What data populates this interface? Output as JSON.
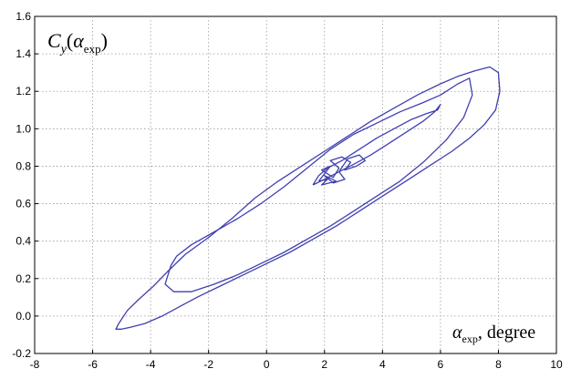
{
  "chart_data": {
    "type": "line",
    "title": "",
    "ylabel": {
      "symbol": "C",
      "subscript": "y",
      "open": "(",
      "arg": "α",
      "arg_sub": "exp",
      "close": ")"
    },
    "xlabel": {
      "symbol": "α",
      "subscript": "exp",
      "suffix": ", degree"
    },
    "xlim": [
      -8,
      10
    ],
    "ylim": [
      -0.2,
      1.6
    ],
    "x_ticks": [
      "-8",
      "-6",
      "-4",
      "-2",
      "0",
      "2",
      "4",
      "6",
      "8",
      "10"
    ],
    "y_ticks": [
      "-0.2",
      "0.0",
      "0.2",
      "0.4",
      "0.6",
      "0.8",
      "1.0",
      "1.2",
      "1.4",
      "1.6"
    ],
    "grid": true,
    "grid_style": "dotted",
    "legend": "none",
    "line_color": "#3f3fb0",
    "series": [
      {
        "x": [
          -5.1,
          -5.2,
          -5.0,
          -4.7,
          -4.2,
          -3.6,
          -3.0,
          -2.4,
          -1.6,
          -0.8,
          0.0,
          0.8,
          1.6,
          2.4,
          3.2,
          4.0,
          4.8,
          5.6,
          6.4,
          7.0,
          7.5,
          7.9,
          8.05,
          8.0,
          7.7,
          7.2,
          6.6,
          6.0,
          5.2,
          4.4,
          3.6,
          2.8,
          2.0,
          1.2,
          0.4,
          -0.4,
          -1.2,
          -2.0,
          -2.8,
          -3.4,
          -3.9,
          -4.4,
          -4.8,
          -5.1
        ],
        "y": [
          -0.04,
          -0.07,
          -0.07,
          -0.06,
          -0.04,
          0.0,
          0.05,
          0.1,
          0.16,
          0.22,
          0.28,
          0.34,
          0.41,
          0.48,
          0.56,
          0.64,
          0.72,
          0.8,
          0.88,
          0.95,
          1.02,
          1.1,
          1.2,
          1.3,
          1.33,
          1.31,
          1.28,
          1.24,
          1.18,
          1.11,
          1.04,
          0.96,
          0.88,
          0.8,
          0.72,
          0.63,
          0.52,
          0.42,
          0.33,
          0.24,
          0.16,
          0.09,
          0.03,
          -0.04
        ]
      },
      {
        "x": [
          -3.3,
          -3.5,
          -3.2,
          -2.6,
          -1.8,
          -1.0,
          -0.2,
          0.6,
          1.4,
          2.2,
          3.0,
          3.8,
          4.6,
          5.4,
          6.2,
          6.8,
          7.1,
          7.0,
          6.6,
          6.0,
          5.4,
          4.6,
          3.8,
          3.0,
          2.2,
          1.4,
          0.6,
          -0.2,
          -1.0,
          -1.8,
          -2.6,
          -3.1,
          -3.3
        ],
        "y": [
          0.27,
          0.17,
          0.13,
          0.13,
          0.17,
          0.22,
          0.28,
          0.34,
          0.41,
          0.48,
          0.56,
          0.64,
          0.72,
          0.82,
          0.94,
          1.06,
          1.18,
          1.27,
          1.24,
          1.18,
          1.14,
          1.09,
          1.03,
          0.97,
          0.89,
          0.79,
          0.69,
          0.6,
          0.52,
          0.45,
          0.38,
          0.32,
          0.27
        ]
      },
      {
        "x": [
          1.6,
          2.0,
          2.5,
          3.0,
          3.6,
          4.2,
          4.8,
          5.4,
          5.8,
          6.0,
          5.9,
          5.5,
          5.0,
          4.4,
          3.8,
          3.2,
          2.6,
          2.1,
          1.8,
          1.6
        ],
        "y": [
          0.7,
          0.73,
          0.77,
          0.81,
          0.86,
          0.92,
          0.98,
          1.04,
          1.09,
          1.13,
          1.1,
          1.08,
          1.05,
          1.0,
          0.95,
          0.89,
          0.83,
          0.79,
          0.75,
          0.7
        ]
      },
      {
        "x": [
          1.8,
          2.0,
          2.2,
          1.9,
          2.3,
          2.5,
          2.2,
          2.6,
          2.9,
          2.7,
          3.1,
          3.4,
          3.2,
          2.8,
          2.5,
          2.7,
          2.3,
          2.0,
          2.4,
          1.9,
          2.1,
          1.8
        ],
        "y": [
          0.72,
          0.76,
          0.8,
          0.78,
          0.74,
          0.79,
          0.83,
          0.85,
          0.82,
          0.78,
          0.8,
          0.83,
          0.86,
          0.84,
          0.77,
          0.73,
          0.71,
          0.75,
          0.72,
          0.7,
          0.73,
          0.72
        ]
      }
    ]
  }
}
